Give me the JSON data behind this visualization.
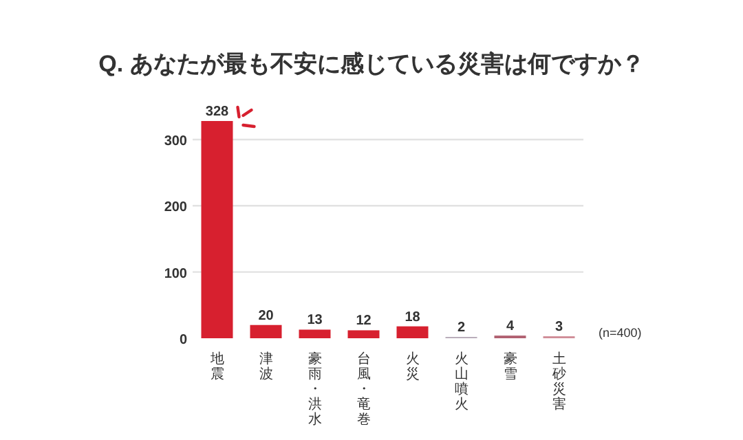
{
  "chart_data": {
    "type": "bar",
    "title": "Q. あなたが最も不安に感じている災害は何ですか？",
    "categories": [
      "地震",
      "津波",
      "豪雨・洪水",
      "台風・竜巻",
      "火災",
      "火山噴火",
      "豪雪",
      "土砂災害"
    ],
    "values": [
      328,
      20,
      13,
      12,
      18,
      2,
      4,
      3
    ],
    "colors": [
      "#d7202f",
      "#d7202f",
      "#d7202f",
      "#d7202f",
      "#d7202f",
      "#b7aab8",
      "#b06070",
      "#d08d98"
    ],
    "ylim": [
      0,
      328
    ],
    "yticks": [
      0,
      100,
      200,
      300
    ],
    "grid": "y",
    "data_labels": true,
    "annotations": [
      "(n=400)"
    ]
  }
}
